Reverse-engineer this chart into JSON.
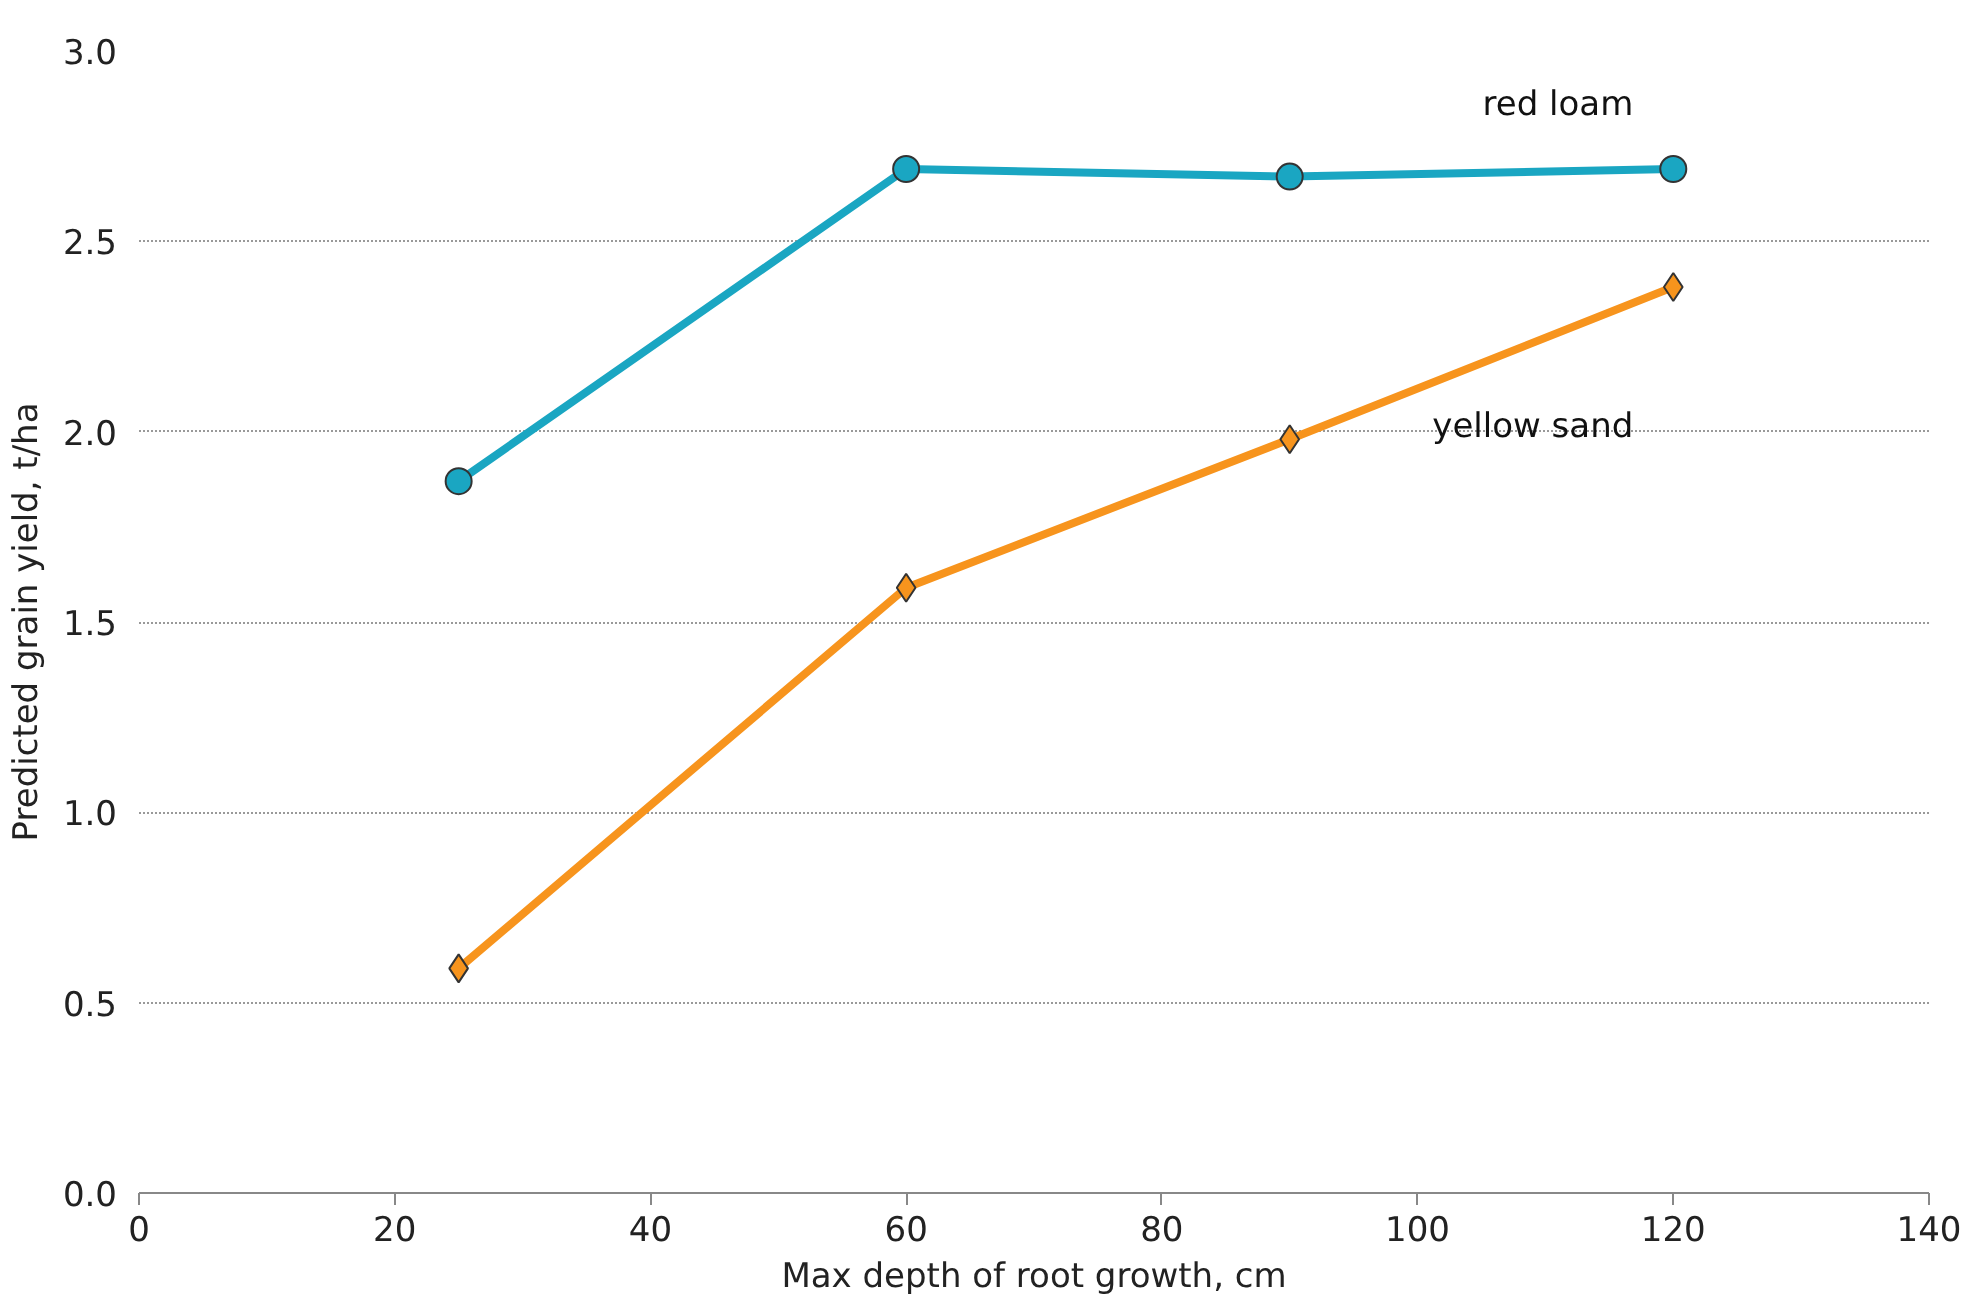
{
  "chart_data": {
    "type": "line",
    "xlabel": "Max depth of root growth, cm",
    "ylabel": "Predicted grain yield, t/ha",
    "x": [
      25,
      60,
      90,
      120
    ],
    "series": [
      {
        "name": "red loam",
        "color": "#1aa6c2",
        "marker": "circle",
        "values": [
          1.87,
          2.69,
          2.67,
          2.69
        ]
      },
      {
        "name": "yellow sand",
        "color": "#f7941d",
        "marker": "diamond",
        "values": [
          0.59,
          1.59,
          1.98,
          2.38
        ]
      }
    ],
    "xlim": [
      0,
      140
    ],
    "xticks": [
      0,
      20,
      40,
      60,
      80,
      100,
      120,
      140
    ],
    "ylim": [
      0,
      3.0
    ],
    "yticks": [
      {
        "value": 0,
        "label": "0.0"
      },
      {
        "value": 0.5,
        "label": "0.5"
      },
      {
        "value": 1.0,
        "label": "1.0"
      },
      {
        "value": 1.5,
        "label": "1.5"
      },
      {
        "value": 2.0,
        "label": "2.0"
      },
      {
        "value": 2.5,
        "label": "2.5"
      },
      {
        "value": 3.0,
        "label": "3.0"
      }
    ],
    "grid": "y",
    "line_style": "solid"
  }
}
